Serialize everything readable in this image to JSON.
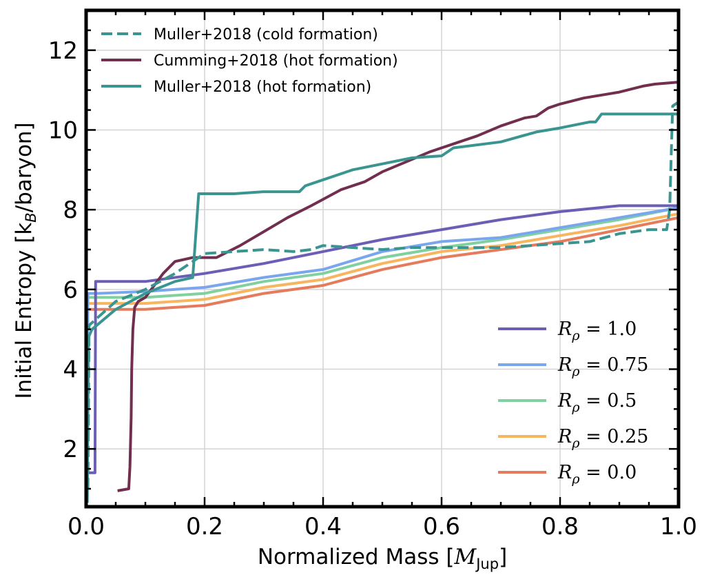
{
  "chart_data": {
    "type": "line",
    "xlabel": "Normalized Mass [",
    "xlabel_math": "M",
    "xlabel_sub": "Jup",
    "xlabel_end": "]",
    "ylabel_pre": "Initial Entropy [k",
    "ylabel_sub": "B",
    "ylabel_post": "/baryon]",
    "xlim": [
      0.0,
      1.0
    ],
    "ylim": [
      0.55,
      13.0
    ],
    "xticks": [
      0.0,
      0.2,
      0.4,
      0.6,
      0.8,
      1.0
    ],
    "xtick_labels": [
      "0.0",
      "0.2",
      "0.4",
      "0.6",
      "0.8",
      "1.0"
    ],
    "yticks": [
      2,
      4,
      6,
      8,
      10,
      12
    ],
    "ytick_labels": [
      "2",
      "4",
      "6",
      "8",
      "10",
      "12"
    ],
    "grid": true,
    "legend_top": [
      {
        "id": "muller-cold",
        "label": "Muller+2018 (cold formation)",
        "color": "#3a9590",
        "dashed": true
      },
      {
        "id": "cumming-hot",
        "label": "Cumming+2018 (hot formation)",
        "color": "#722e4e",
        "dashed": false
      },
      {
        "id": "muller-hot",
        "label": "Muller+2018 (hot formation)",
        "color": "#3a9590",
        "dashed": false
      }
    ],
    "legend_bottom": [
      {
        "id": "r10",
        "math": "R",
        "sub": "ρ",
        "rest": " = 1.0",
        "color": "#6a5fb5"
      },
      {
        "id": "r075",
        "math": "R",
        "sub": "ρ",
        "rest": " = 0.75",
        "color": "#7aa6ee"
      },
      {
        "id": "r05",
        "math": "R",
        "sub": "ρ",
        "rest": " = 0.5",
        "color": "#80d0a0"
      },
      {
        "id": "r025",
        "math": "R",
        "sub": "ρ",
        "rest": " = 0.25",
        "color": "#f7b560"
      },
      {
        "id": "r00",
        "math": "R",
        "sub": "ρ",
        "rest": " = 0.0",
        "color": "#e57a5c"
      }
    ],
    "series": [
      {
        "id": "r00",
        "name": "R_rho = 0.0",
        "color": "#e57a5c",
        "dashed": false,
        "x": [
          0.0,
          0.0,
          0.003,
          0.02,
          0.1,
          0.2,
          0.3,
          0.4,
          0.5,
          0.6,
          0.7,
          0.8,
          0.9,
          1.0
        ],
        "y": [
          0.6,
          1.3,
          5.5,
          5.5,
          5.5,
          5.6,
          5.9,
          6.1,
          6.5,
          6.8,
          7.0,
          7.2,
          7.5,
          7.8
        ]
      },
      {
        "id": "r025",
        "name": "R_rho = 0.25",
        "color": "#f7b560",
        "dashed": false,
        "x": [
          0.0,
          0.0,
          0.003,
          0.02,
          0.1,
          0.2,
          0.3,
          0.4,
          0.5,
          0.6,
          0.7,
          0.8,
          0.9,
          1.0
        ],
        "y": [
          0.6,
          1.3,
          5.65,
          5.65,
          5.65,
          5.75,
          6.05,
          6.25,
          6.65,
          6.95,
          7.1,
          7.35,
          7.6,
          7.9
        ]
      },
      {
        "id": "r05",
        "name": "R_rho = 0.5",
        "color": "#80d0a0",
        "dashed": false,
        "x": [
          0.0,
          0.0,
          0.003,
          0.02,
          0.1,
          0.2,
          0.3,
          0.4,
          0.5,
          0.6,
          0.7,
          0.8,
          0.9,
          1.0
        ],
        "y": [
          0.6,
          1.3,
          5.8,
          5.8,
          5.8,
          5.9,
          6.2,
          6.4,
          6.8,
          7.05,
          7.25,
          7.5,
          7.75,
          8.05
        ]
      },
      {
        "id": "r075",
        "name": "R_rho = 0.75",
        "color": "#7aa6ee",
        "dashed": false,
        "x": [
          0.0,
          0.0,
          0.003,
          0.02,
          0.1,
          0.2,
          0.3,
          0.4,
          0.5,
          0.6,
          0.7,
          0.8,
          0.9,
          1.0
        ],
        "y": [
          0.6,
          1.3,
          5.9,
          5.9,
          5.95,
          6.05,
          6.3,
          6.5,
          6.95,
          7.2,
          7.3,
          7.55,
          7.8,
          8.05
        ]
      },
      {
        "id": "r10",
        "name": "R_rho = 1.0",
        "color": "#6a5fb5",
        "dashed": false,
        "x": [
          0.0,
          0.0,
          0.003,
          0.012,
          0.015,
          0.016,
          0.1,
          0.2,
          0.3,
          0.4,
          0.5,
          0.6,
          0.7,
          0.8,
          0.9,
          1.0
        ],
        "y": [
          0.6,
          1.3,
          1.4,
          1.4,
          1.4,
          6.2,
          6.2,
          6.4,
          6.65,
          6.95,
          7.25,
          7.5,
          7.75,
          7.95,
          8.1,
          8.1
        ]
      },
      {
        "id": "cumming-hot",
        "name": "Cumming+2018 (hot formation)",
        "color": "#722e4e",
        "dashed": false,
        "x": [
          0.053,
          0.072,
          0.074,
          0.076,
          0.077,
          0.079,
          0.082,
          0.088,
          0.1,
          0.11,
          0.13,
          0.15,
          0.18,
          0.22,
          0.26,
          0.3,
          0.34,
          0.38,
          0.43,
          0.47,
          0.5,
          0.54,
          0.58,
          0.6,
          0.63,
          0.66,
          0.7,
          0.74,
          0.76,
          0.78,
          0.8,
          0.84,
          0.86,
          0.9,
          0.94,
          0.96,
          1.0
        ],
        "y": [
          0.95,
          1.0,
          1.55,
          2.8,
          4.0,
          5.0,
          5.55,
          5.7,
          5.8,
          6.0,
          6.4,
          6.7,
          6.8,
          6.8,
          7.1,
          7.45,
          7.8,
          8.1,
          8.5,
          8.7,
          8.95,
          9.2,
          9.45,
          9.55,
          9.7,
          9.85,
          10.1,
          10.3,
          10.35,
          10.55,
          10.65,
          10.8,
          10.85,
          10.95,
          11.1,
          11.15,
          11.2
        ]
      },
      {
        "id": "muller-hot",
        "name": "Muller+2018 (hot formation)",
        "color": "#3a9590",
        "dashed": false,
        "x": [
          0.002,
          0.004,
          0.01,
          0.05,
          0.1,
          0.15,
          0.18,
          0.19,
          0.25,
          0.3,
          0.36,
          0.37,
          0.4,
          0.45,
          0.5,
          0.55,
          0.6,
          0.62,
          0.7,
          0.76,
          0.8,
          0.85,
          0.86,
          0.87,
          0.9,
          0.96,
          0.99,
          1.0
        ],
        "y": [
          0.65,
          4.8,
          5.0,
          5.5,
          5.9,
          6.2,
          6.3,
          8.4,
          8.4,
          8.45,
          8.45,
          8.6,
          8.75,
          9.0,
          9.15,
          9.3,
          9.35,
          9.55,
          9.7,
          9.95,
          10.05,
          10.2,
          10.2,
          10.4,
          10.4,
          10.4,
          10.4,
          10.4
        ]
      },
      {
        "id": "muller-cold",
        "name": "Muller+2018 (cold formation)",
        "color": "#3a9590",
        "dashed": true,
        "x": [
          0.003,
          0.005,
          0.02,
          0.05,
          0.1,
          0.15,
          0.18,
          0.2,
          0.25,
          0.3,
          0.35,
          0.38,
          0.4,
          0.45,
          0.5,
          0.55,
          0.6,
          0.65,
          0.7,
          0.75,
          0.8,
          0.85,
          0.9,
          0.95,
          0.98,
          0.985,
          0.99,
          1.0
        ],
        "y": [
          1.0,
          5.1,
          5.3,
          5.7,
          6.0,
          6.4,
          6.7,
          6.9,
          6.95,
          7.0,
          6.95,
          7.0,
          7.1,
          7.05,
          7.0,
          7.05,
          7.05,
          7.05,
          7.05,
          7.1,
          7.15,
          7.2,
          7.4,
          7.5,
          7.5,
          8.0,
          10.6,
          10.7
        ]
      }
    ]
  }
}
